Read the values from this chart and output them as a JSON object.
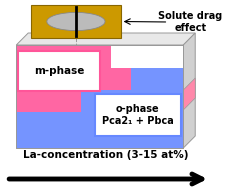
{
  "bg_color": "#ffffff",
  "box_face_color": "#ffffff",
  "box_top_color": "#e8e8e8",
  "box_right_color": "#d0d0d0",
  "box_edge_color": "#999999",
  "m_phase_color": "#ff5599",
  "o_phase_color": "#6688ff",
  "m_phase_label": "m-phase",
  "o_phase_label": "o-phase\nPca2₁ + Pbca",
  "solute_drag_label": "Solute drag\neffect",
  "x_axis_label": "La-concentration (3-15 at%)",
  "src_gold_color": "#cc9900",
  "src_gold_dark": "#886600",
  "src_beam_color": "#cccccc",
  "right_pink_color": "#ff88aa"
}
